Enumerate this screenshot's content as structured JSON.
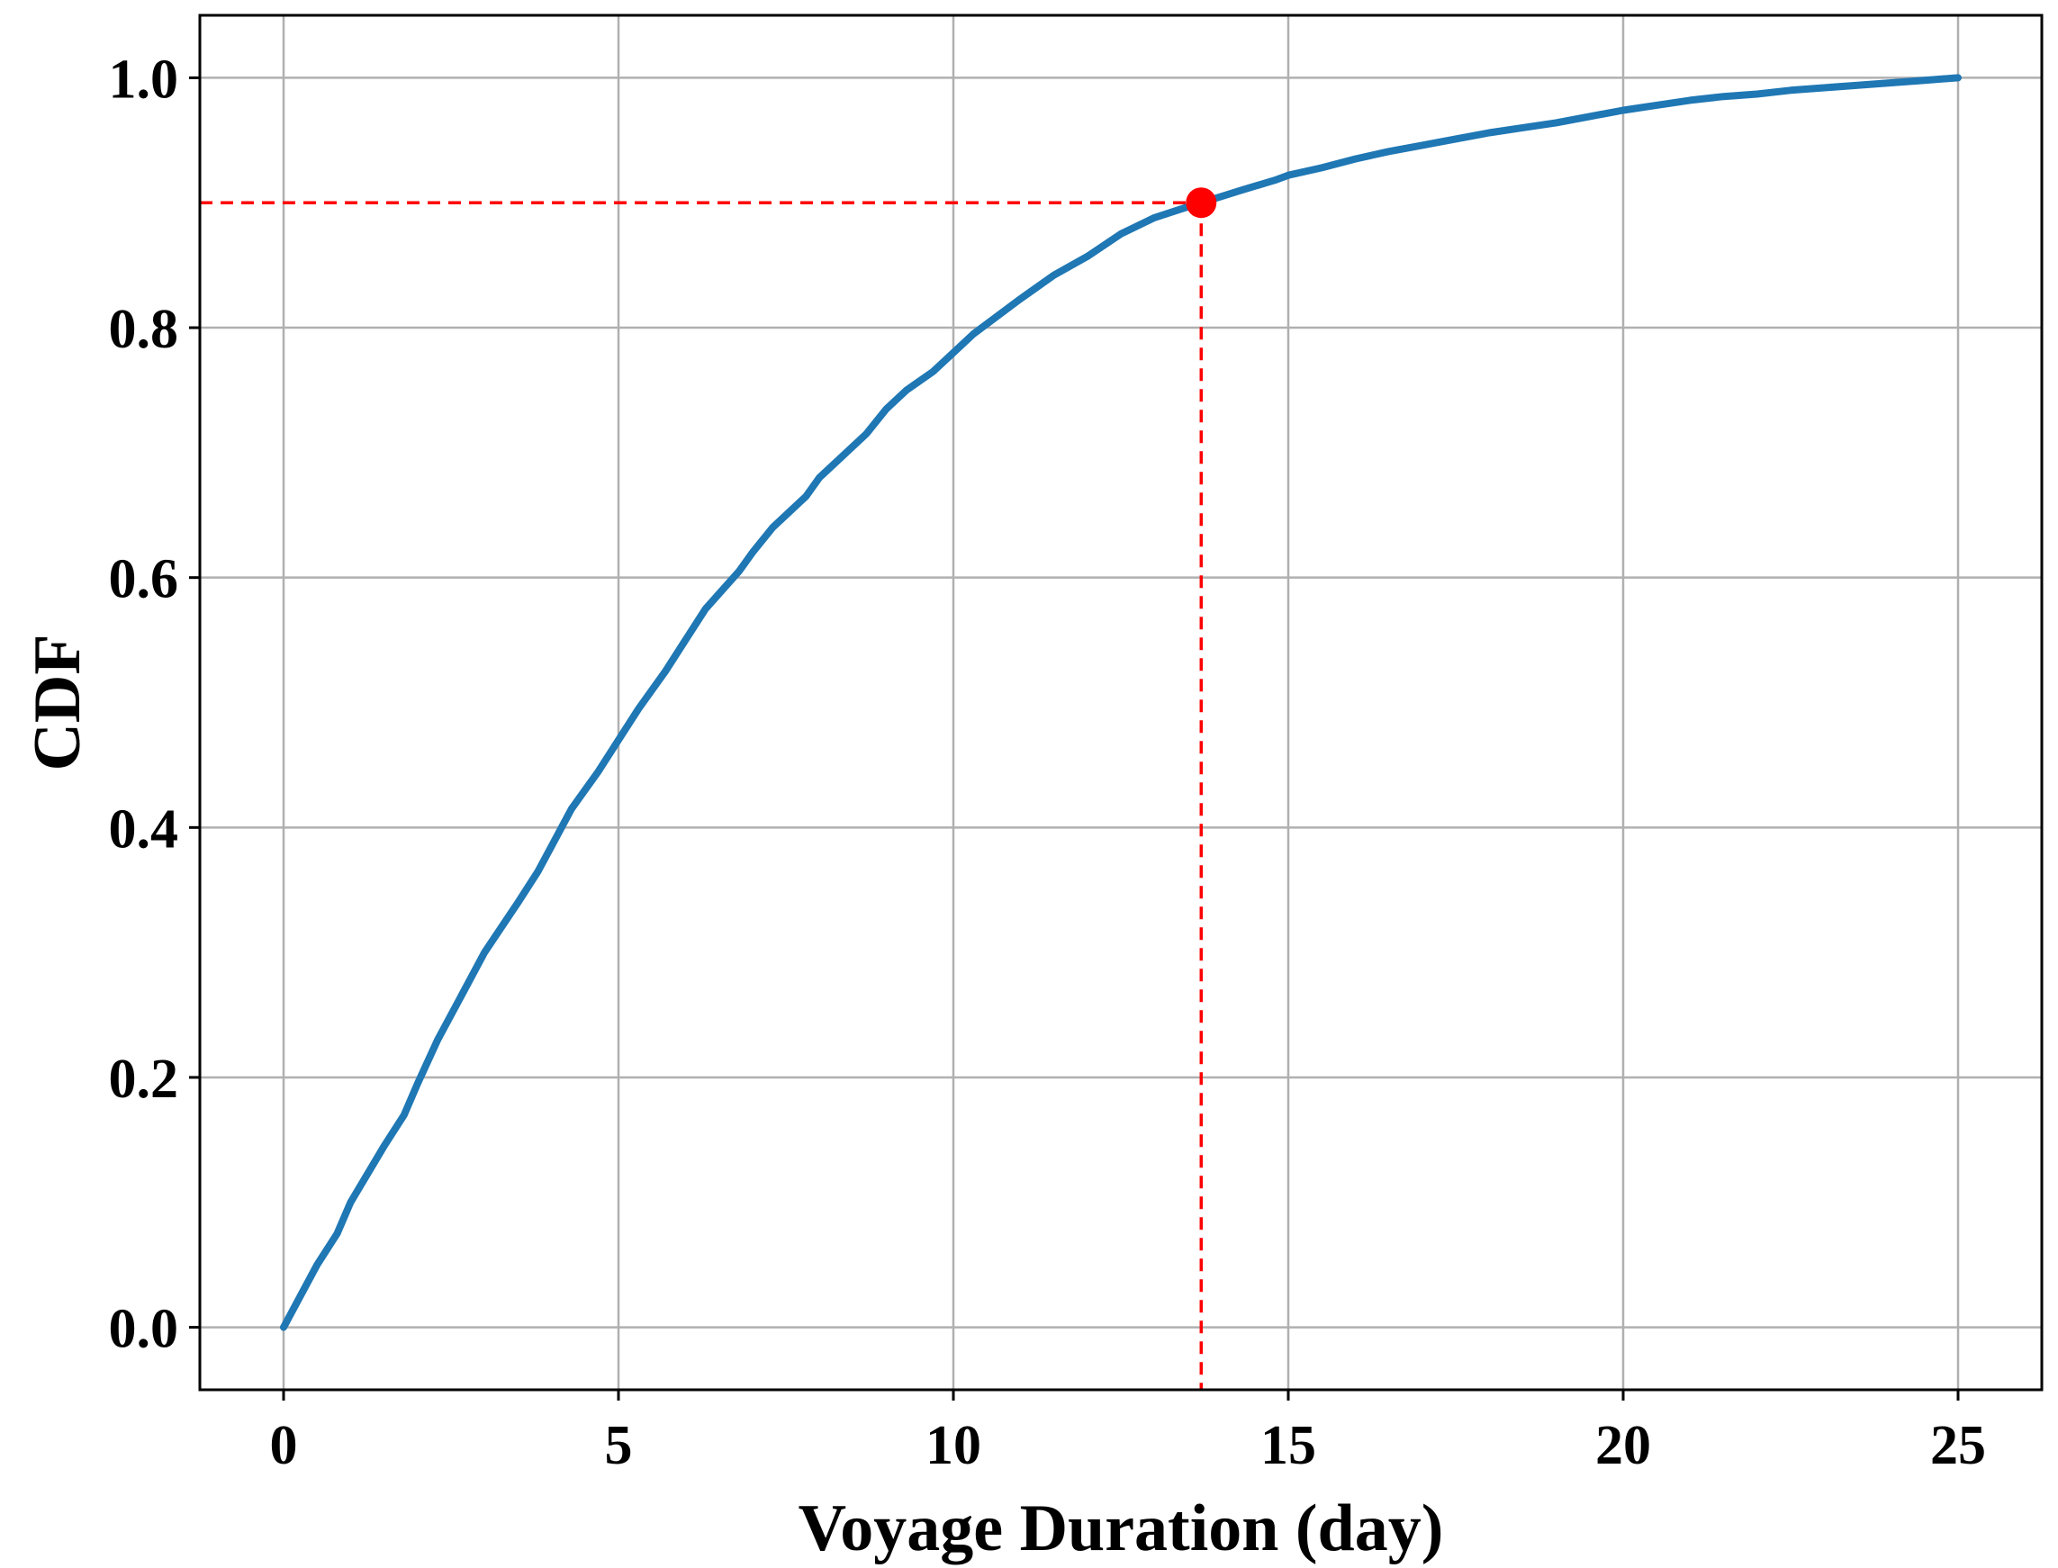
{
  "chart_data": {
    "type": "line",
    "title": "",
    "xlabel": "Voyage Duration (day)",
    "ylabel": "CDF",
    "xlim": [
      -1.25,
      26.25
    ],
    "ylim": [
      -0.05,
      1.05
    ],
    "xticks": [
      0,
      5,
      10,
      15,
      20,
      25
    ],
    "xtick_labels": [
      "0",
      "5",
      "10",
      "15",
      "20",
      "25"
    ],
    "yticks": [
      0.0,
      0.2,
      0.4,
      0.6,
      0.8,
      1.0
    ],
    "ytick_labels": [
      "0.0",
      "0.2",
      "0.4",
      "0.6",
      "0.8",
      "1.0"
    ],
    "grid": true,
    "legend": "none",
    "colors": {
      "series": "#1f77b4",
      "marker": "#ff0000",
      "grid": "#b0b0b0"
    },
    "series": [
      {
        "x": [
          0,
          0.5,
          0.8,
          1.0,
          1.5,
          1.8,
          2.0,
          2.3,
          2.7,
          3.0,
          3.5,
          3.8,
          4.0,
          4.3,
          4.7,
          5.0,
          5.3,
          5.7,
          6.0,
          6.3,
          6.8,
          7.0,
          7.3,
          7.8,
          8.0,
          8.3,
          8.7,
          9.0,
          9.3,
          9.7,
          10.0,
          10.3,
          10.8,
          11.0,
          11.5,
          12.0,
          12.5,
          13.0,
          13.4,
          13.7,
          14.0,
          14.3,
          14.8,
          15.0,
          15.5,
          16.0,
          16.5,
          17.0,
          17.5,
          18.0,
          18.5,
          19.0,
          19.5,
          20.0,
          20.5,
          21.0,
          21.5,
          22.0,
          22.5,
          23.0,
          23.5,
          24.0,
          24.5,
          25.0
        ],
        "y": [
          0.0,
          0.05,
          0.075,
          0.1,
          0.145,
          0.17,
          0.195,
          0.23,
          0.27,
          0.3,
          0.34,
          0.365,
          0.385,
          0.415,
          0.445,
          0.47,
          0.495,
          0.525,
          0.55,
          0.575,
          0.605,
          0.62,
          0.64,
          0.665,
          0.68,
          0.695,
          0.715,
          0.735,
          0.75,
          0.765,
          0.78,
          0.795,
          0.815,
          0.823,
          0.842,
          0.857,
          0.875,
          0.888,
          0.895,
          0.9,
          0.905,
          0.91,
          0.918,
          0.922,
          0.928,
          0.935,
          0.941,
          0.946,
          0.951,
          0.956,
          0.96,
          0.964,
          0.969,
          0.974,
          0.978,
          0.982,
          0.985,
          0.987,
          0.99,
          0.992,
          0.994,
          0.996,
          0.998,
          1.0
        ]
      }
    ],
    "annotation": {
      "x": 13.7,
      "y": 0.9,
      "marker": "circle",
      "guides": "dashed"
    }
  }
}
